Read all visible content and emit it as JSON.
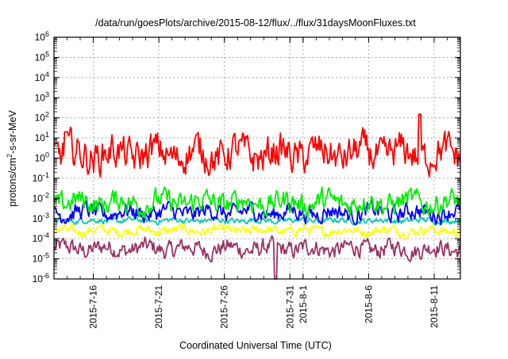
{
  "chart_data": {
    "type": "line",
    "title": "/data/run/goesPlots/archive/2015-08-12/flux/../flux/31daysMoonFluxes.txt",
    "xlabel": "Coordinated Universal Time (UTC)",
    "ylabel": "protons/cm2-s-sr-MeV",
    "ylabel_parts": {
      "base": "protons/cm",
      "sup": "2",
      "rest": "-s-sr-MeV"
    },
    "yscale": "log",
    "ylim_exponents": [
      -6,
      6
    ],
    "y_tick_labels": [
      {
        "base": "10",
        "exp": "6"
      },
      {
        "base": "10",
        "exp": "5"
      },
      {
        "base": "10",
        "exp": "4"
      },
      {
        "base": "10",
        "exp": "3"
      },
      {
        "base": "10",
        "exp": "2"
      },
      {
        "base": "10",
        "exp": "1"
      },
      {
        "base": "10",
        "exp": "0"
      },
      {
        "base": "10",
        "exp": "-1"
      },
      {
        "base": "10",
        "exp": "-2"
      },
      {
        "base": "10",
        "exp": "-3"
      },
      {
        "base": "10",
        "exp": "-4"
      },
      {
        "base": "10",
        "exp": "-5"
      },
      {
        "base": "10",
        "exp": "-6"
      }
    ],
    "xlim": [
      "2015-07-13",
      "2015-08-13"
    ],
    "x_ticks": [
      "2015-7-16",
      "2015-7-21",
      "2015-7-26",
      "2015-7-31",
      "2015-8-1",
      "2015-8-6",
      "2015-8-11"
    ],
    "grid": true,
    "series": [
      {
        "color": "#ff0000",
        "typical_log10": 0.2,
        "spread": 0.7,
        "min_log10": -1.3,
        "max_log10": 2.2,
        "peak_values": [
          20,
          150
        ]
      },
      {
        "color": "#00ee00",
        "typical_log10": -2.2,
        "spread": 0.45,
        "min_log10": -3.3,
        "max_log10": -1.3
      },
      {
        "color": "#0000ff",
        "typical_log10": -2.7,
        "spread": 0.35,
        "min_log10": -3.3,
        "max_log10": -1.9
      },
      {
        "color": "#00ccaa",
        "typical_log10": -3.1,
        "spread": 0.12,
        "min_log10": -3.3,
        "max_log10": -2.9
      },
      {
        "color": "#ffff00",
        "typical_log10": -3.6,
        "spread": 0.2,
        "min_log10": -4.0,
        "max_log10": -3.3
      },
      {
        "color": "#993366",
        "typical_log10": -4.5,
        "spread": 0.35,
        "min_log10": -6.0,
        "max_log10": -3.3
      }
    ]
  }
}
